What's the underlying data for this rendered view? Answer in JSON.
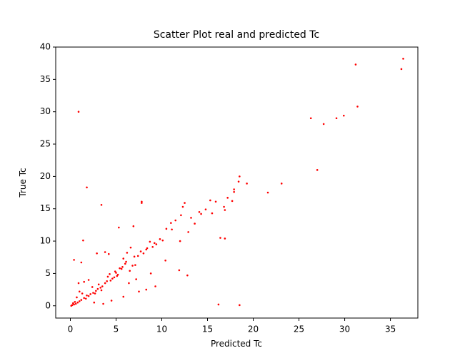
{
  "chart_data": {
    "type": "scatter",
    "title": "Scatter Plot real and predicted Tc",
    "x_label": "Predicted Tc",
    "y_label": "True Tc",
    "xlim": [
      -1.6,
      38.0
    ],
    "ylim": [
      -1.9,
      40
    ],
    "xticks": [
      0,
      5,
      10,
      15,
      20,
      25,
      30,
      35
    ],
    "yticks": [
      0,
      5,
      10,
      15,
      20,
      25,
      30,
      35,
      40
    ],
    "series": [
      {
        "color": "#ff0000",
        "x": [
          0.9,
          1.8,
          3.4,
          1.4,
          0.4,
          1.2,
          16.2,
          18.5,
          16.4,
          11.9,
          12.8,
          8.3,
          5.3,
          7.8,
          7.8,
          26.3,
          27.7,
          29.1,
          29.9,
          31.2,
          31.4,
          36.4,
          36.2,
          27.0,
          23.1,
          21.6,
          19.3,
          18.5,
          18.4,
          17.2,
          17.7,
          17.9,
          17.9,
          16.8,
          16.9,
          15.3,
          15.9,
          14.3,
          14.1,
          13.2,
          12.5,
          12.3,
          12.1,
          11.5,
          11.0,
          10.5,
          10.1,
          9.8,
          9.4,
          9.0,
          8.7,
          8.3,
          8.0,
          7.4,
          7.0,
          6.8,
          6.6,
          6.2,
          6.0,
          5.8,
          5.6,
          5.2,
          5.0,
          4.8,
          4.6,
          4.3,
          4.0,
          3.8,
          3.5,
          3.3,
          3.0,
          2.8,
          2.5,
          2.2,
          2.0,
          1.8,
          1.5,
          1.2,
          1.0,
          0.8,
          0.6,
          0.4,
          0.2,
          0.1,
          0.5,
          3.8,
          4.2,
          2.9,
          6.9,
          11.1,
          9.3,
          7.5,
          5.8,
          4.5,
          3.6,
          2.6,
          1.5,
          0.9,
          1.0,
          2.0,
          6.4,
          7.2,
          8.8,
          10.4,
          12.0,
          12.9,
          13.6,
          14.8,
          15.5,
          16.9,
          5.1,
          4.9,
          5.4,
          5.7,
          6.1,
          6.5,
          7.1,
          7.7,
          8.4,
          9.2,
          2.4,
          2.7,
          3.1,
          3.4,
          1.7,
          1.3,
          0.7,
          0.3,
          4.1,
          4.4
        ],
        "y": [
          30.0,
          18.3,
          15.6,
          10.1,
          7.1,
          6.7,
          0.2,
          0.1,
          10.5,
          5.5,
          4.7,
          2.5,
          12.1,
          15.9,
          16.1,
          29.0,
          28.1,
          29.0,
          29.4,
          37.3,
          30.8,
          38.2,
          36.6,
          21.0,
          18.9,
          17.5,
          18.9,
          20.0,
          19.2,
          16.7,
          16.2,
          18.0,
          17.6,
          15.3,
          14.8,
          16.3,
          16.1,
          14.2,
          14.5,
          13.6,
          15.9,
          15.3,
          14.0,
          13.2,
          12.8,
          11.9,
          10.1,
          10.3,
          9.5,
          9.1,
          9.9,
          8.7,
          8.1,
          7.7,
          7.6,
          6.2,
          9.0,
          8.2,
          6.5,
          7.3,
          5.7,
          4.8,
          5.1,
          4.4,
          4.2,
          4.9,
          3.8,
          3.5,
          3.0,
          2.8,
          2.6,
          2.3,
          2.0,
          1.8,
          1.5,
          1.6,
          1.2,
          0.9,
          0.7,
          0.5,
          0.3,
          0.2,
          0.1,
          0.0,
          0.6,
          8.3,
          8.0,
          8.1,
          12.3,
          11.8,
          3.0,
          2.2,
          1.4,
          0.8,
          0.3,
          0.5,
          3.7,
          3.5,
          2.2,
          4.0,
          3.5,
          4.1,
          5.0,
          7.0,
          10.0,
          11.4,
          12.7,
          14.9,
          14.3,
          10.4,
          4.6,
          5.3,
          5.8,
          6.0,
          6.8,
          5.4,
          6.3,
          8.4,
          8.9,
          9.7,
          2.9,
          1.9,
          3.3,
          2.4,
          1.1,
          1.9,
          1.3,
          0.4,
          4.5,
          3.9
        ]
      }
    ]
  }
}
